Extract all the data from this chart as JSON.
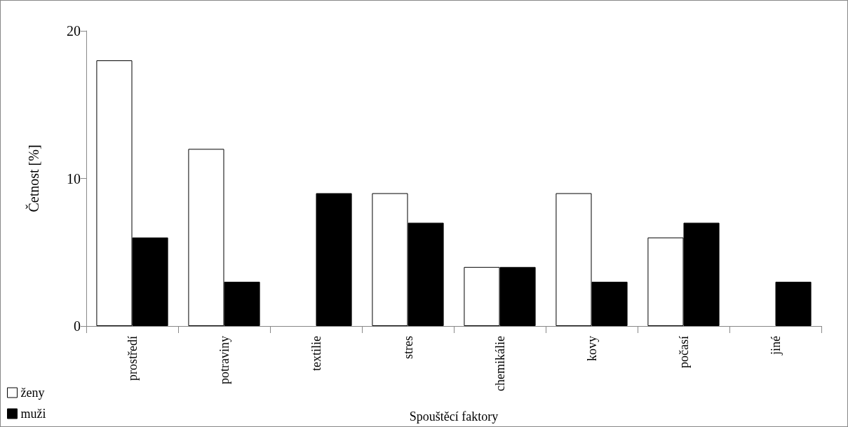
{
  "chart_data": {
    "type": "bar",
    "xlabel": "Spouštěcí faktory",
    "ylabel": "Četnost [%]",
    "categories": [
      "prostředí",
      "potraviny",
      "textilie",
      "stres",
      "chemikálie",
      "kovy",
      "počasí",
      "jiné"
    ],
    "series": [
      {
        "name": "ženy",
        "color": "#ffffff",
        "values": [
          18,
          12,
          0,
          9,
          4,
          9,
          6,
          0
        ]
      },
      {
        "name": "muži",
        "color": "#000000",
        "values": [
          6,
          3,
          9,
          7,
          4,
          3,
          7,
          3
        ]
      }
    ],
    "ylim": [
      0,
      20
    ],
    "yticks": [
      0,
      10,
      20
    ],
    "grid": false,
    "legend": "bottom left"
  }
}
